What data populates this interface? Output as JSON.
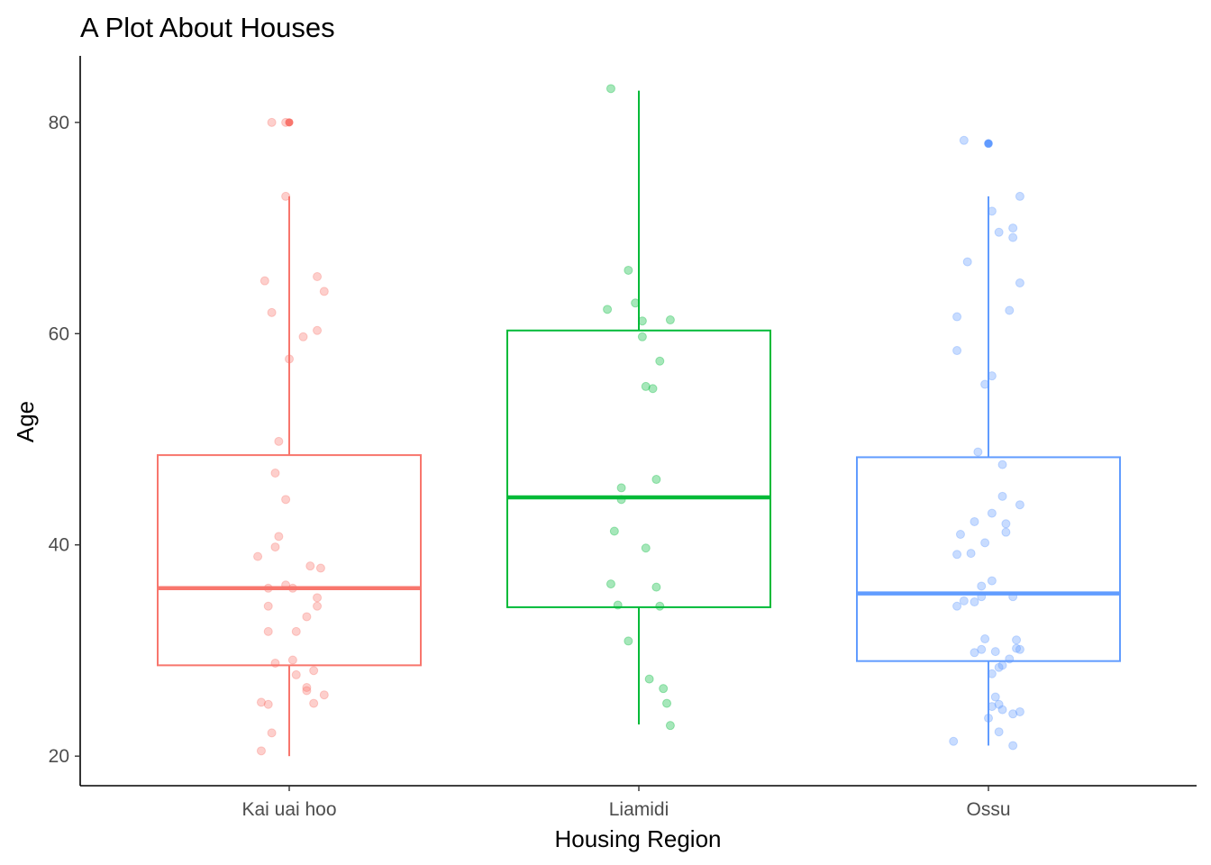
{
  "chart_data": {
    "type": "box",
    "title": "A Plot About Houses",
    "xlabel": "Housing Region",
    "ylabel": "Age",
    "categories": [
      "Kai uai hoo",
      "Liamidi",
      "Ossu"
    ],
    "colors": [
      "#F8766D",
      "#00BA38",
      "#619CFF"
    ],
    "ylim": [
      17.2,
      86.3
    ],
    "yticks": [
      20,
      40,
      60,
      80
    ],
    "grid": false,
    "legend": "none",
    "boxes": [
      {
        "category": "Kai uai hoo",
        "whisker_low": 20,
        "q1": 28.6,
        "median": 35.9,
        "q3": 48.5,
        "whisker_high": 73,
        "outliers": [
          80
        ]
      },
      {
        "category": "Liamidi",
        "whisker_low": 23,
        "q1": 34.1,
        "median": 44.5,
        "q3": 60.3,
        "whisker_high": 83,
        "outliers": []
      },
      {
        "category": "Ossu",
        "whisker_low": 21,
        "q1": 29,
        "median": 35.4,
        "q3": 48.3,
        "whisker_high": 73,
        "outliers": [
          78
        ]
      }
    ],
    "points": [
      {
        "category": "Kai uai hoo",
        "jitter": [
          [
            -0.05,
            80
          ],
          [
            -0.01,
            80
          ],
          [
            -0.01,
            73
          ],
          [
            -0.07,
            65
          ],
          [
            0.08,
            65.4
          ],
          [
            0.1,
            64
          ],
          [
            -0.05,
            62
          ],
          [
            0.08,
            60.3
          ],
          [
            0.04,
            59.7
          ],
          [
            0.0,
            57.6
          ],
          [
            -0.03,
            49.8
          ],
          [
            -0.04,
            46.8
          ],
          [
            -0.01,
            44.3
          ],
          [
            -0.03,
            40.8
          ],
          [
            -0.04,
            39.8
          ],
          [
            -0.09,
            38.9
          ],
          [
            0.06,
            38
          ],
          [
            0.09,
            37.8
          ],
          [
            -0.01,
            36.2
          ],
          [
            0.01,
            35.9
          ],
          [
            -0.06,
            35.9
          ],
          [
            0.08,
            35
          ],
          [
            -0.06,
            34.2
          ],
          [
            0.08,
            34.2
          ],
          [
            0.05,
            33.2
          ],
          [
            -0.06,
            31.8
          ],
          [
            0.02,
            31.8
          ],
          [
            0.01,
            29.1
          ],
          [
            -0.04,
            28.8
          ],
          [
            0.07,
            28.1
          ],
          [
            0.02,
            27.7
          ],
          [
            0.05,
            26.5
          ],
          [
            0.05,
            26.2
          ],
          [
            0.1,
            25.8
          ],
          [
            0.07,
            25
          ],
          [
            -0.08,
            25.1
          ],
          [
            -0.06,
            24.9
          ],
          [
            -0.05,
            22.2
          ],
          [
            -0.08,
            20.5
          ]
        ]
      },
      {
        "category": "Liamidi",
        "jitter": [
          [
            -0.08,
            83.2
          ],
          [
            -0.03,
            66
          ],
          [
            -0.01,
            62.9
          ],
          [
            -0.09,
            62.3
          ],
          [
            0.01,
            61.2
          ],
          [
            0.09,
            61.3
          ],
          [
            0.01,
            59.7
          ],
          [
            0.06,
            57.4
          ],
          [
            0.02,
            55
          ],
          [
            0.04,
            54.8
          ],
          [
            -0.05,
            45.4
          ],
          [
            0.05,
            46.2
          ],
          [
            -0.05,
            44.3
          ],
          [
            -0.07,
            41.3
          ],
          [
            0.02,
            39.7
          ],
          [
            -0.08,
            36.3
          ],
          [
            0.05,
            36
          ],
          [
            -0.06,
            34.3
          ],
          [
            0.06,
            34.2
          ],
          [
            -0.03,
            30.9
          ],
          [
            0.03,
            27.3
          ],
          [
            0.07,
            26.4
          ],
          [
            0.08,
            25
          ],
          [
            0.09,
            22.9
          ]
        ]
      },
      {
        "category": "Ossu",
        "jitter": [
          [
            0.0,
            78
          ],
          [
            -0.07,
            78.3
          ],
          [
            0.09,
            73
          ],
          [
            0.01,
            71.6
          ],
          [
            0.07,
            70
          ],
          [
            0.03,
            69.6
          ],
          [
            0.07,
            69.1
          ],
          [
            -0.06,
            66.8
          ],
          [
            0.09,
            64.8
          ],
          [
            0.06,
            62.2
          ],
          [
            -0.09,
            61.6
          ],
          [
            -0.09,
            58.4
          ],
          [
            0.01,
            56
          ],
          [
            -0.01,
            55.2
          ],
          [
            -0.03,
            48.8
          ],
          [
            0.04,
            47.6
          ],
          [
            0.04,
            44.6
          ],
          [
            0.09,
            43.8
          ],
          [
            0.01,
            43
          ],
          [
            -0.04,
            42.2
          ],
          [
            0.05,
            42
          ],
          [
            -0.08,
            41
          ],
          [
            0.05,
            41.2
          ],
          [
            -0.01,
            40.2
          ],
          [
            -0.09,
            39.1
          ],
          [
            -0.05,
            39.2
          ],
          [
            0.01,
            36.6
          ],
          [
            -0.02,
            36.1
          ],
          [
            -0.02,
            35.1
          ],
          [
            0.07,
            35.1
          ],
          [
            -0.07,
            34.7
          ],
          [
            -0.04,
            34.6
          ],
          [
            -0.09,
            34.2
          ],
          [
            -0.01,
            31.1
          ],
          [
            0.08,
            31
          ],
          [
            0.08,
            30.2
          ],
          [
            0.09,
            30.1
          ],
          [
            0.02,
            29.9
          ],
          [
            -0.02,
            30.1
          ],
          [
            -0.04,
            29.8
          ],
          [
            0.06,
            29.2
          ],
          [
            0.04,
            28.6
          ],
          [
            0.03,
            28.4
          ],
          [
            0.01,
            27.8
          ],
          [
            0.02,
            25.6
          ],
          [
            0.03,
            24.9
          ],
          [
            0.04,
            24.4
          ],
          [
            0.01,
            24.7
          ],
          [
            0.09,
            24.2
          ],
          [
            0.07,
            24
          ],
          [
            0.0,
            23.6
          ],
          [
            0.03,
            22.3
          ],
          [
            -0.1,
            21.4
          ],
          [
            0.07,
            21
          ]
        ]
      }
    ]
  }
}
